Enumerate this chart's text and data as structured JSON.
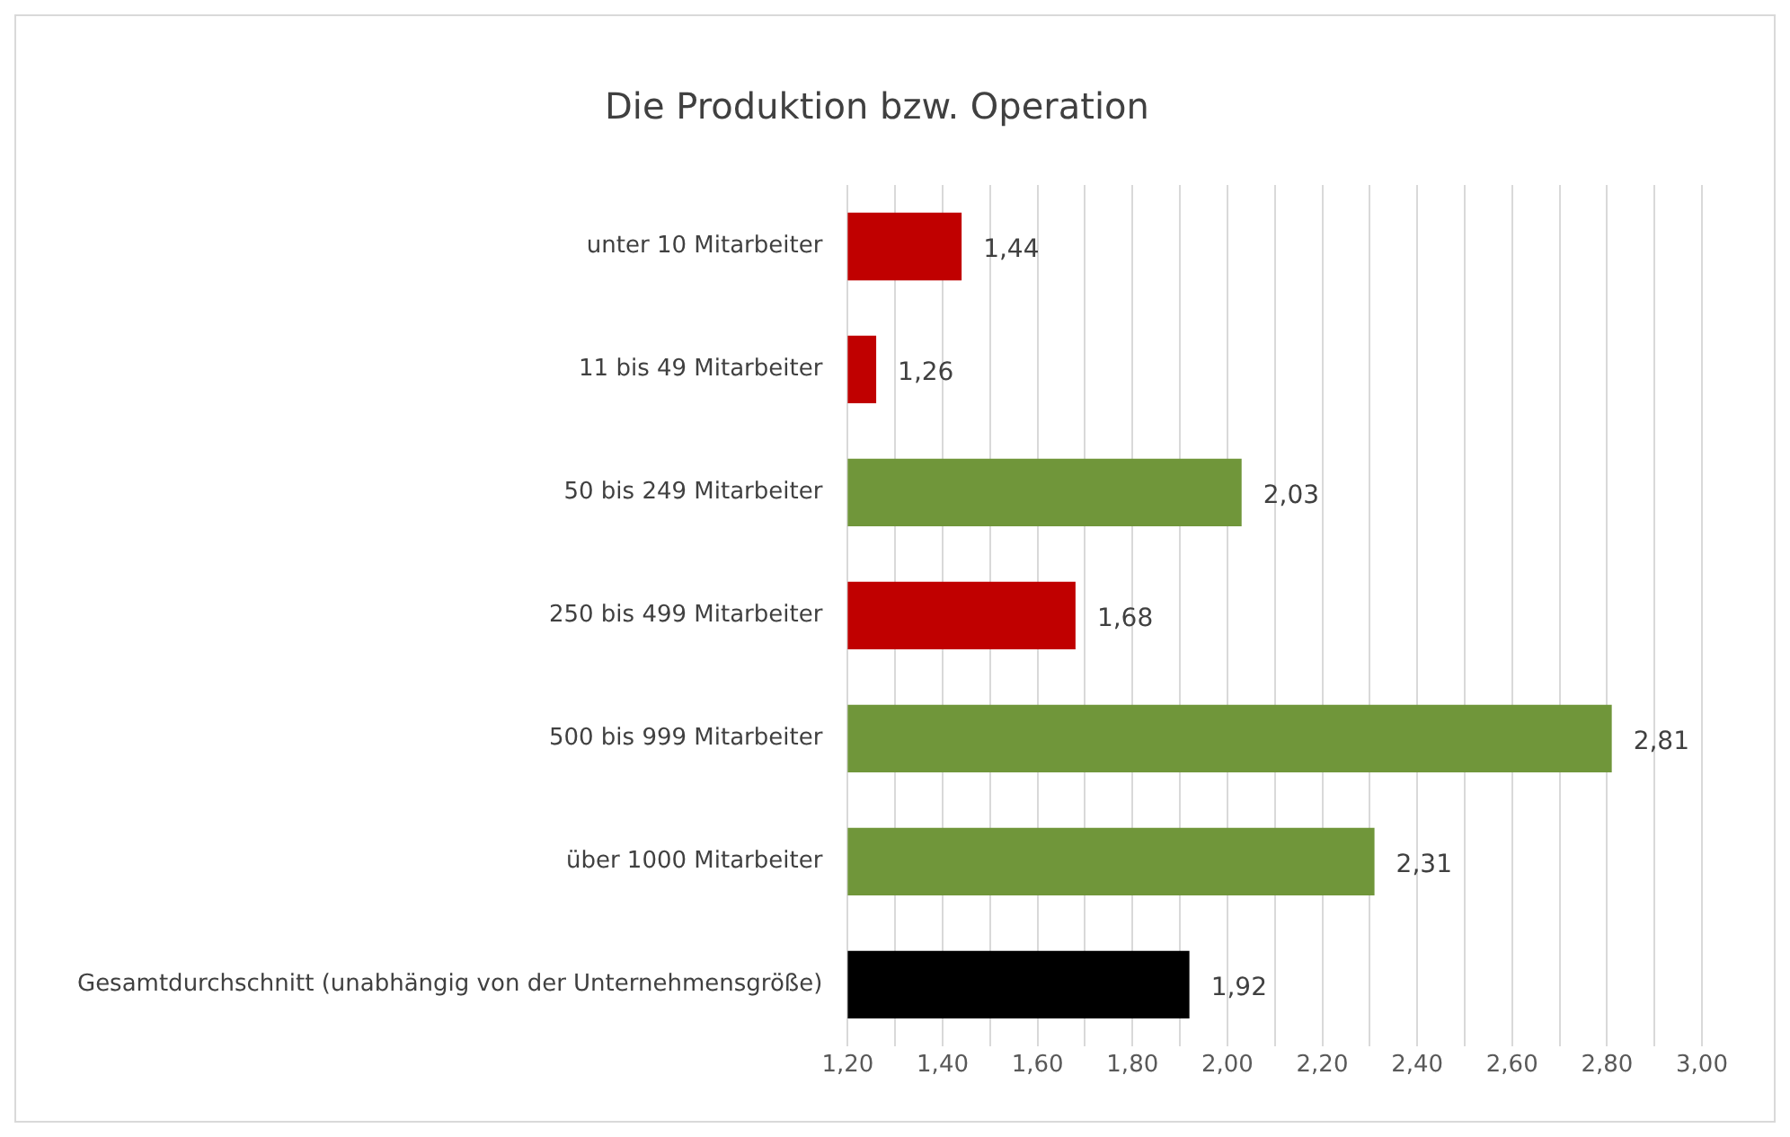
{
  "chart_data": {
    "type": "bar",
    "orientation": "horizontal",
    "title": "Die Produktion bzw. Operation",
    "categories": [
      "unter 10 Mitarbeiter",
      "11 bis 49 Mitarbeiter",
      "50 bis 249 Mitarbeiter",
      "250 bis 499 Mitarbeiter",
      "500 bis 999 Mitarbeiter",
      "über 1000 Mitarbeiter",
      "Gesamtdurchschnitt (unabhängig von der Unternehmensgröße)"
    ],
    "values": [
      1.44,
      1.26,
      2.03,
      1.68,
      2.81,
      2.31,
      1.92
    ],
    "colors": [
      "#c00000",
      "#c00000",
      "#70963a",
      "#c00000",
      "#70963a",
      "#70963a",
      "#000000"
    ],
    "value_labels": [
      "1,44",
      "1,26",
      "2,03",
      "1,68",
      "2,81",
      "2,31",
      "1,92"
    ],
    "xlim": [
      1.2,
      3.0
    ],
    "xticks": [
      {
        "value": 1.2,
        "label": "1,20"
      },
      {
        "value": 1.3,
        "label": null
      },
      {
        "value": 1.4,
        "label": "1,40"
      },
      {
        "value": 1.5,
        "label": null
      },
      {
        "value": 1.6,
        "label": "1,60"
      },
      {
        "value": 1.7,
        "label": null
      },
      {
        "value": 1.8,
        "label": "1,80"
      },
      {
        "value": 1.9,
        "label": null
      },
      {
        "value": 2.0,
        "label": "2,00"
      },
      {
        "value": 2.1,
        "label": null
      },
      {
        "value": 2.2,
        "label": "2,20"
      },
      {
        "value": 2.3,
        "label": null
      },
      {
        "value": 2.4,
        "label": "2,40"
      },
      {
        "value": 2.5,
        "label": null
      },
      {
        "value": 2.6,
        "label": "2,60"
      },
      {
        "value": 2.7,
        "label": null
      },
      {
        "value": 2.8,
        "label": "2,80"
      },
      {
        "value": 2.9,
        "label": null
      },
      {
        "value": 3.0,
        "label": "3,00"
      }
    ],
    "grid": "x",
    "legend": false
  }
}
